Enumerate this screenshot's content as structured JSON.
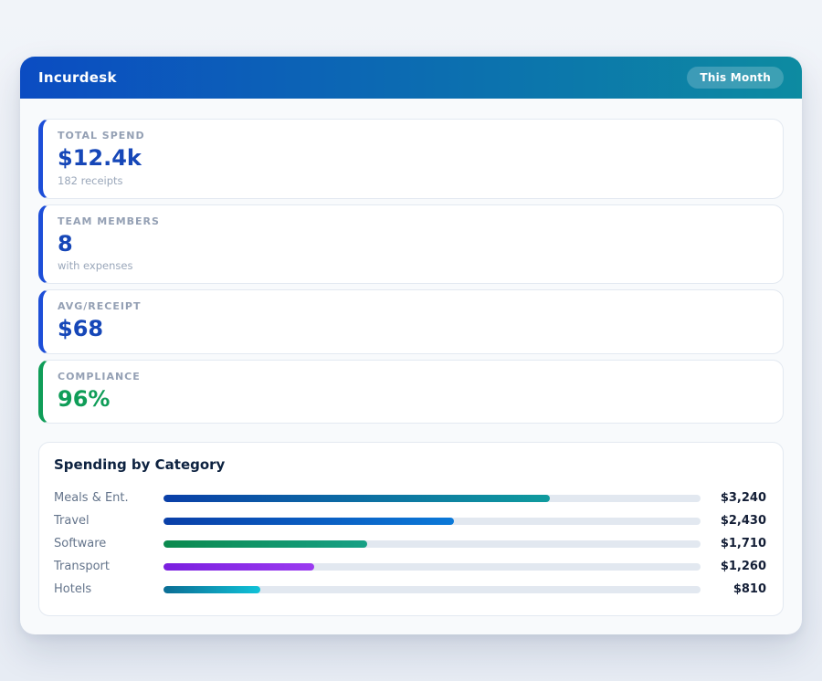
{
  "header": {
    "app_title": "Incurdesk",
    "period_badge": "This Month",
    "gradient_left": "#0b4cc2",
    "gradient_right": "#0d8ba1"
  },
  "stats": [
    {
      "label": "TOTAL SPEND",
      "value": "$12.4k",
      "sub": "182 receipts",
      "accent": "#1d4ed8",
      "value_color": "#1647b8"
    },
    {
      "label": "TEAM MEMBERS",
      "value": "8",
      "sub": "with expenses",
      "accent": "#1d4ed8",
      "value_color": "#1647b8"
    },
    {
      "label": "AVG/RECEIPT",
      "value": "$68",
      "sub": "",
      "accent": "#1d4ed8",
      "value_color": "#1647b8"
    },
    {
      "label": "COMPLIANCE",
      "value": "96%",
      "sub": "",
      "accent": "#0f9d58",
      "value_color": "#0f9d58"
    }
  ],
  "chart_data": {
    "type": "bar",
    "orientation": "horizontal",
    "title": "Spending by Category",
    "categories": [
      "Meals & Ent.",
      "Travel",
      "Software",
      "Transport",
      "Hotels"
    ],
    "values": [
      3240,
      2430,
      1710,
      1260,
      810
    ],
    "value_labels": [
      "$3,240",
      "$2,430",
      "$1,710",
      "$1,260",
      "$810"
    ],
    "xlim": [
      0,
      4500
    ],
    "track_color": "#e2e8f0",
    "bar_gradients": [
      [
        "#0a3fa8",
        "#0f9b9e"
      ],
      [
        "#0a3fa8",
        "#0b79d8"
      ],
      [
        "#0b8a4e",
        "#16a085"
      ],
      [
        "#7a1fdf",
        "#9b3bf0"
      ],
      [
        "#0b6d94",
        "#10c2d8"
      ]
    ]
  }
}
